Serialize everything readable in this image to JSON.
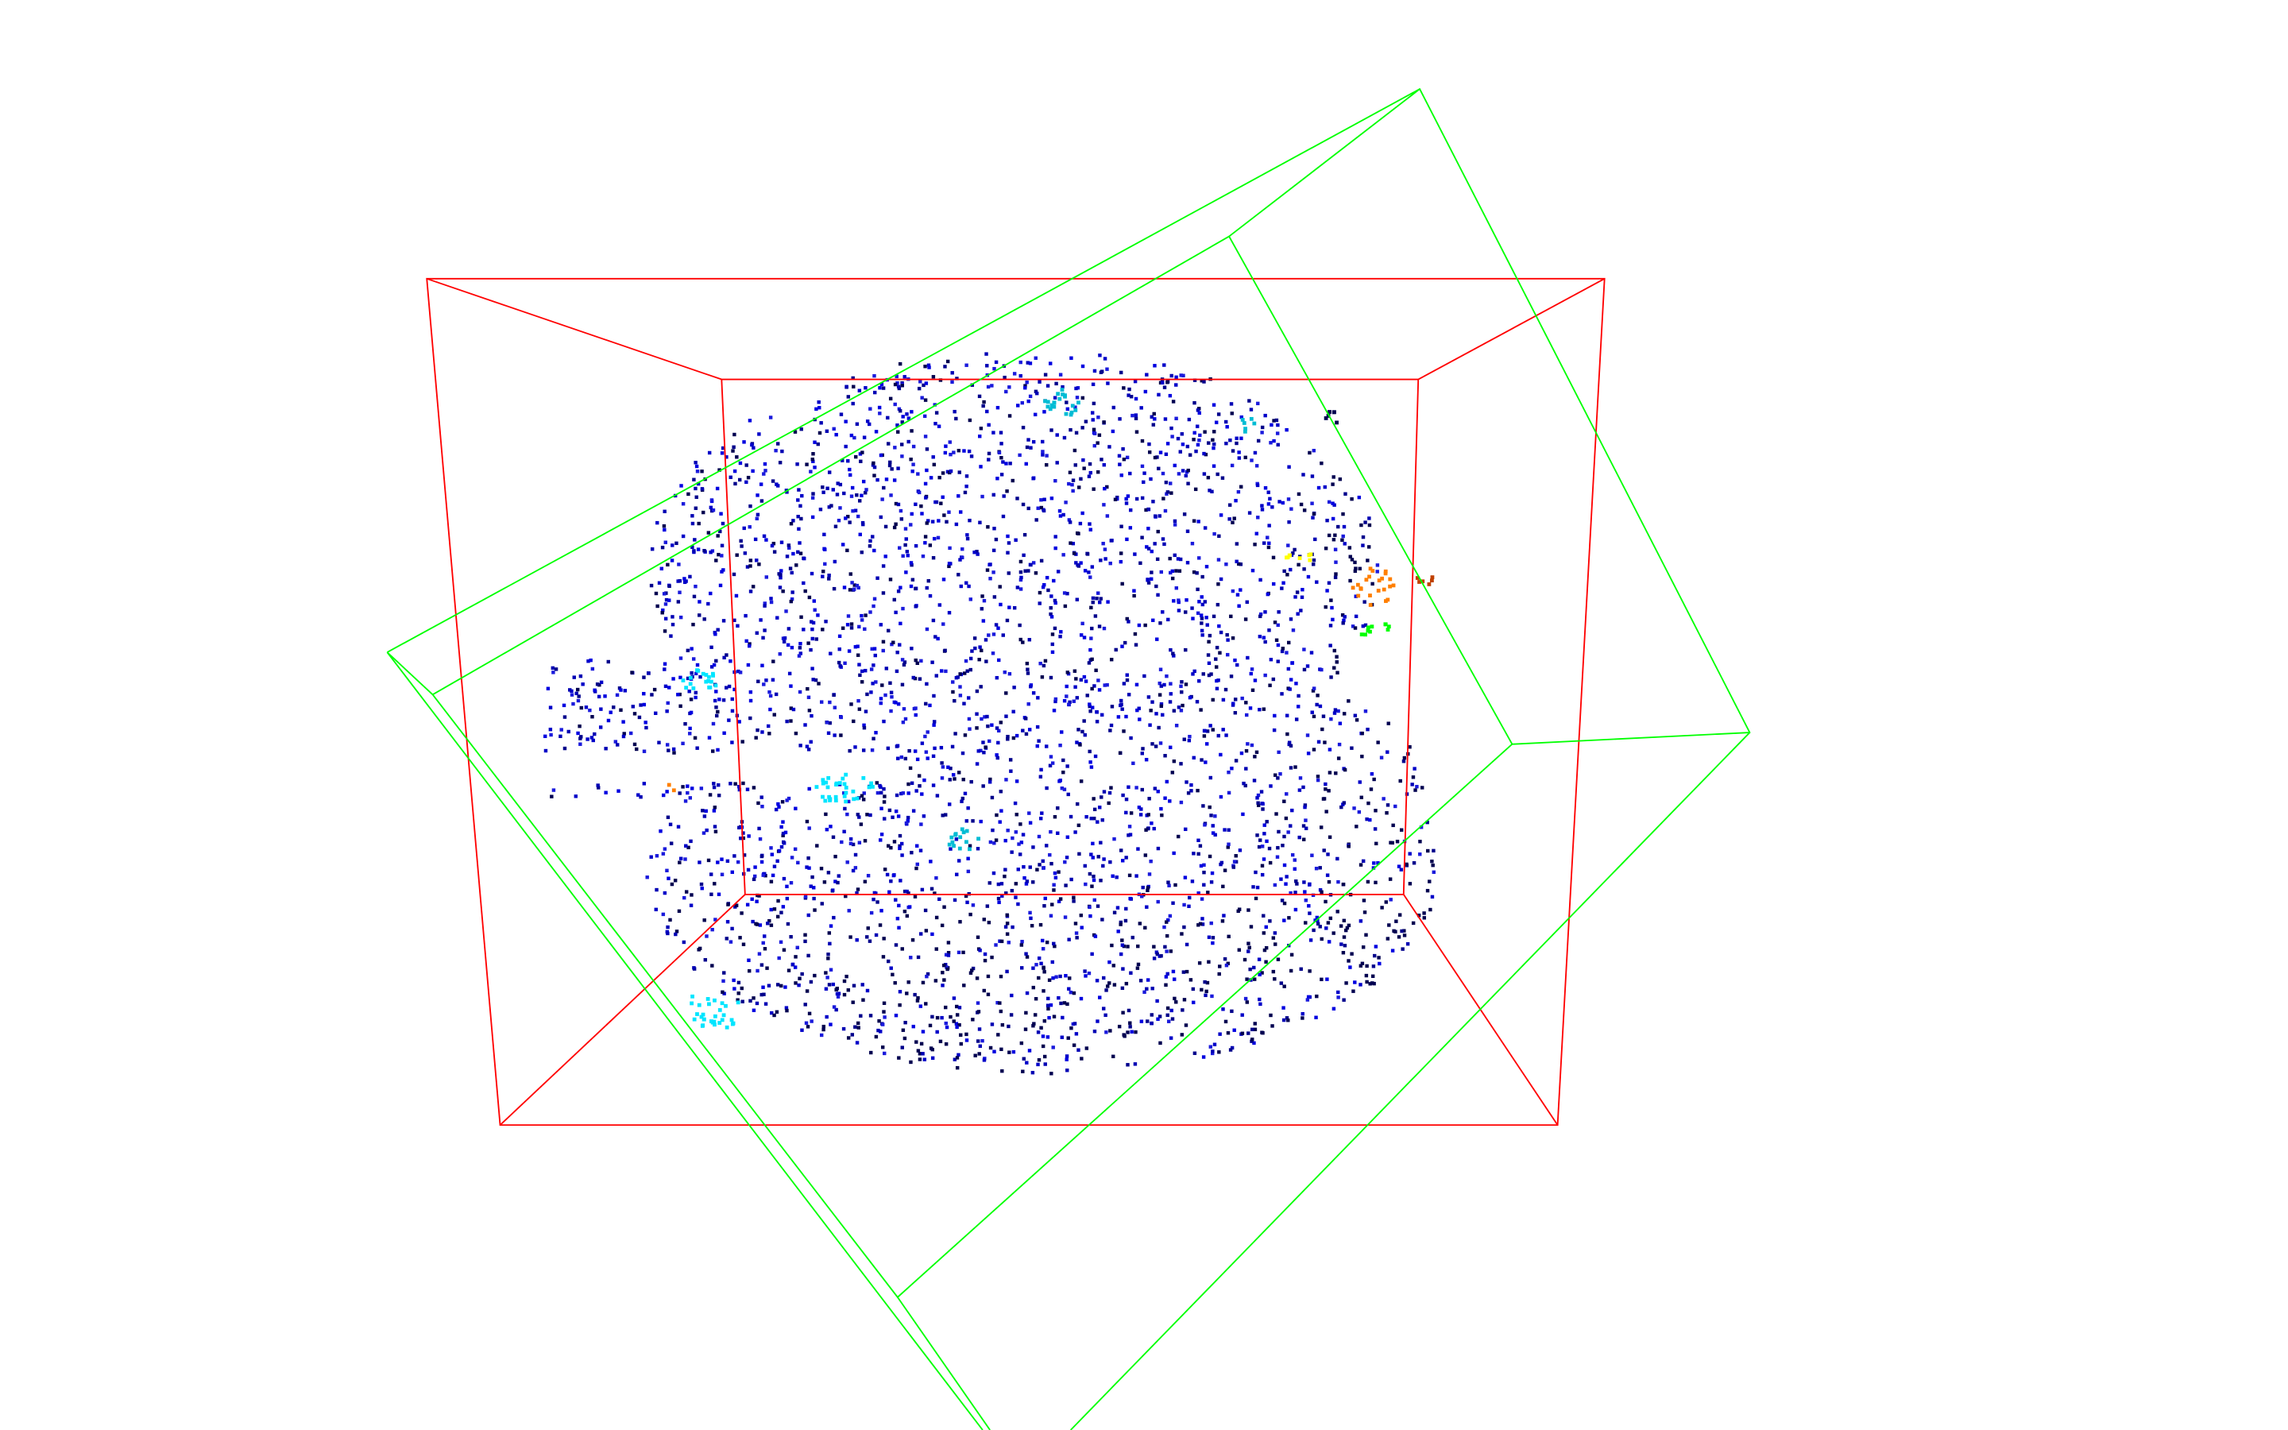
{
  "viewer": {
    "background": "#ffffff",
    "content": "point-cloud",
    "bounding_boxes": [
      {
        "name": "axis-aligned-bounding-box",
        "color": "#ff0000"
      },
      {
        "name": "oriented-bounding-box",
        "color": "#00ff00"
      }
    ],
    "colormap": "jet",
    "point_count_approx": 3400,
    "dominant_color": "#0000c8",
    "outlier_colors": [
      "#00e5ff",
      "#00bcd4",
      "#ffff00",
      "#ff7f00",
      "#c04000",
      "#00ff00",
      "#000050"
    ]
  }
}
